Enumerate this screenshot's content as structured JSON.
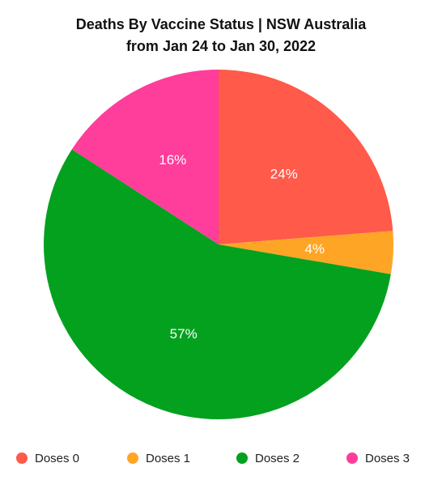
{
  "chart_data": {
    "type": "pie",
    "title": "Deaths By Vaccine Status | NSW Australia",
    "subtitle": "from Jan 24 to Jan 30, 2022",
    "legend_position": "bottom",
    "series": [
      {
        "name": "Doses 0",
        "value": 24,
        "label": "24%",
        "color": "#ff5a4a"
      },
      {
        "name": "Doses 1",
        "value": 4,
        "label": "4%",
        "color": "#ffa526"
      },
      {
        "name": "Doses 2",
        "value": 57,
        "label": "57%",
        "color": "#04a11f"
      },
      {
        "name": "Doses 3",
        "value": 16,
        "label": "16%",
        "color": "#ff3d9a"
      }
    ]
  }
}
